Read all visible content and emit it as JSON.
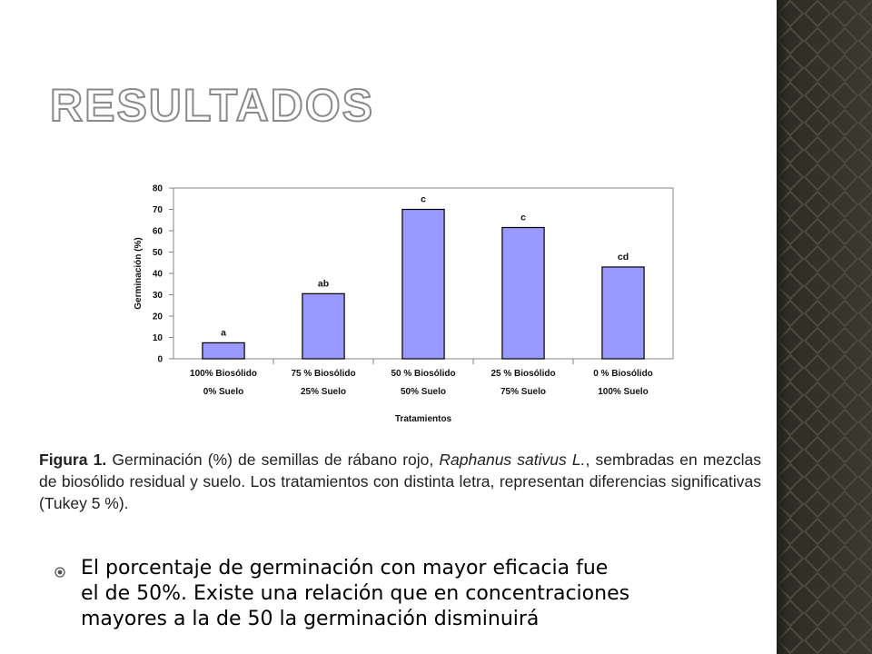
{
  "slide": {
    "title": "RESULTADOS",
    "caption": {
      "label": "Figura 1.",
      "text_before_italic": " Germinación (%) de semillas de rábano rojo, ",
      "italic": "Raphanus sativus L.",
      "text_after_italic": ", sembradas en mezclas de biosólido residual y suelo. Los tratamientos con distinta letra, representan diferencias significativas (Tukey 5 %)."
    },
    "bullet": "El porcentaje de germinación con mayor eficacia fue\nel de 50%. Existe una relación que en concentraciones\nmayores a la de 50 la germinación disminuirá",
    "colors": {
      "bar": "#9999ff",
      "bar_stroke": "#000000",
      "plot_border": "#868686",
      "side_strip": "#33332a"
    }
  },
  "chart_data": {
    "type": "bar",
    "categories": [
      [
        "100% Biosólido",
        "0% Suelo"
      ],
      [
        "75 % Biosólido",
        "25% Suelo"
      ],
      [
        "50 % Biosólido",
        "50% Suelo"
      ],
      [
        "25 % Biosólido",
        "75% Suelo"
      ],
      [
        "0 % Biosólido",
        "100% Suelo"
      ]
    ],
    "values": [
      7.5,
      30.5,
      70,
      61.5,
      43
    ],
    "letters": [
      "a",
      "ab",
      "c",
      "c",
      "cd"
    ],
    "xlabel": "Tratamientos",
    "ylabel": "Germinación (%)",
    "ylim": [
      0,
      80
    ],
    "yticks": [
      "0",
      "10",
      "20",
      "30",
      "40",
      "50",
      "60",
      "70",
      "80"
    ],
    "grid": false,
    "legend": "none"
  }
}
